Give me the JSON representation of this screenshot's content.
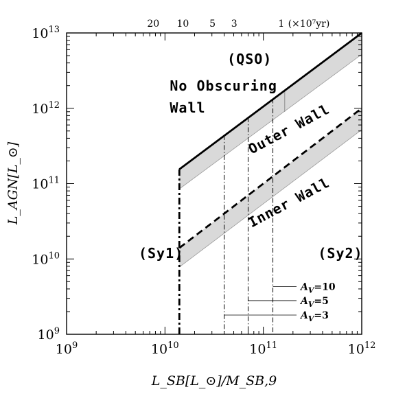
{
  "chart_data": {
    "type": "line",
    "title": "",
    "xlabel": "L_SB[L_⊙]/M_SB,9",
    "ylabel": "L_AGN[L_⊙]",
    "xscale": "log",
    "yscale": "log",
    "xlim": [
      1000000000.0,
      1000000000000.0
    ],
    "ylim": [
      1000000000.0,
      10000000000000.0
    ],
    "x_ticks": [
      {
        "value": 1000000000.0,
        "base": "10",
        "exp": "9"
      },
      {
        "value": 10000000000.0,
        "base": "10",
        "exp": "10"
      },
      {
        "value": 100000000000.0,
        "base": "10",
        "exp": "11"
      },
      {
        "value": 1000000000000.0,
        "base": "10",
        "exp": "12"
      }
    ],
    "y_ticks": [
      {
        "value": 1000000000.0,
        "base": "10",
        "exp": "9"
      },
      {
        "value": 10000000000.0,
        "base": "10",
        "exp": "10"
      },
      {
        "value": 100000000000.0,
        "base": "10",
        "exp": "11"
      },
      {
        "value": 1000000000000.0,
        "base": "10",
        "exp": "12"
      },
      {
        "value": 10000000000000.0,
        "base": "10",
        "exp": "13"
      }
    ],
    "top_axis": {
      "labels": [
        {
          "text": "20",
          "x": 7600000000.0
        },
        {
          "text": "10",
          "x": 15200000000.0
        },
        {
          "text": "5",
          "x": 30400000000.0
        },
        {
          "text": "3",
          "x": 50600000000.0
        },
        {
          "text": "1",
          "x": 152000000000.0
        }
      ],
      "unit": "(×10⁷yr)",
      "unit_x": 290000000000.0
    },
    "series": [
      {
        "style": "solid-thick",
        "points": [
          [
            14000000000.0,
            155000000000.0
          ],
          [
            1000000000000.0,
            10000000000000.0
          ]
        ]
      },
      {
        "style": "dashed-thick",
        "points": [
          [
            14000000000.0,
            14000000000.0
          ],
          [
            1000000000000.0,
            1000000000000.0
          ]
        ]
      },
      {
        "style": "dashdot-thick",
        "points": [
          [
            14000000000.0,
            1000000000.0
          ],
          [
            14000000000.0,
            155000000000.0
          ]
        ]
      }
    ],
    "shaded_bands": [
      {
        "upper": [
          [
            14000000000.0,
            155000000000.0
          ],
          [
            1000000000000.0,
            10000000000000.0
          ]
        ],
        "lower": [
          [
            14000000000.0,
            85000000000.0
          ],
          [
            1000000000000.0,
            5200000000000.0
          ]
        ]
      },
      {
        "upper": [
          [
            14000000000.0,
            14000000000.0
          ],
          [
            1000000000000.0,
            1000000000000.0
          ]
        ],
        "lower": [
          [
            14000000000.0,
            7800000000.0
          ],
          [
            1000000000000.0,
            520000000000.0
          ]
        ]
      }
    ],
    "vertical_lines": [
      {
        "x": 40000000000.0,
        "y_top": 440000000000.0,
        "label_parts": [
          "A",
          "V",
          "=3"
        ],
        "label_y": 1800000000.0
      },
      {
        "x": 70000000000.0,
        "y_top": 760000000000.0,
        "label_parts": [
          "A",
          "V",
          "=5"
        ],
        "label_y": 2800000000.0
      },
      {
        "x": 125000000000.0,
        "y_top": 1350000000000.0,
        "label_parts": [
          "A",
          "V",
          "=10"
        ],
        "label_y": 4300000000.0
      }
    ],
    "extra_vertical": {
      "x": 165000000000.0,
      "y_bottom": 900000000000.0,
      "y_top": 1750000000000.0
    },
    "annotations": [
      {
        "text": "(QSO)",
        "x": 43000000000.0,
        "y": 3900000000000.0
      },
      {
        "text": "No Obscuring",
        "x": 11200000000.0,
        "y": 1720000000000.0
      },
      {
        "text": "Wall",
        "x": 11200000000.0,
        "y": 880000000000.0
      },
      {
        "text": "(Sy1)",
        "x": 5400000000.0,
        "y": 10300000000.0
      },
      {
        "text": "(Sy2)",
        "x": 360000000000.0,
        "y": 10300000000.0
      },
      {
        "text": "Outer Wall",
        "x": 76000000000.0,
        "y": 245000000000.0,
        "rotate": -28
      },
      {
        "text": "Inner Wall",
        "x": 76000000000.0,
        "y": 26000000000.0,
        "rotate": -28
      }
    ]
  }
}
